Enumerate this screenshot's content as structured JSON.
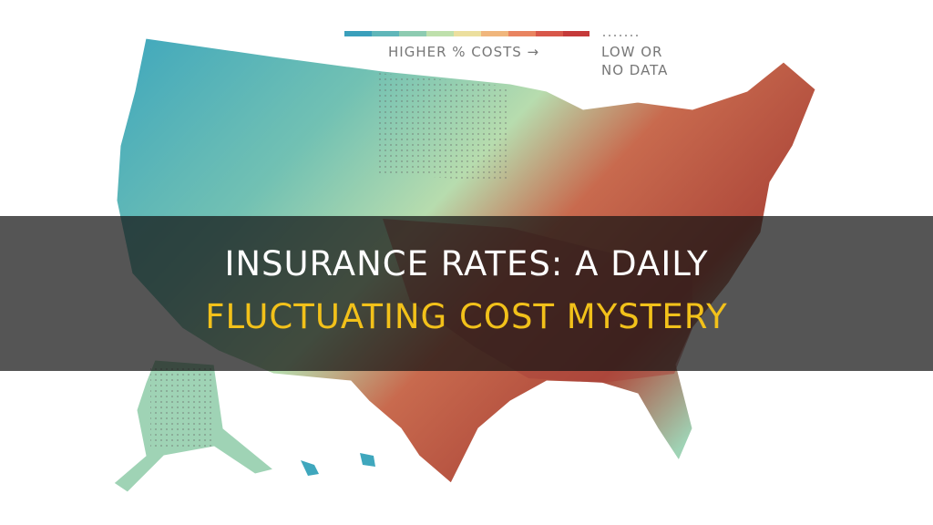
{
  "legend": {
    "scale_label": "HIGHER % COSTS →",
    "no_data_line1": "LOW OR",
    "no_data_line2": "NO DATA"
  },
  "title": {
    "line1": "INSURANCE RATES: A DAILY",
    "line2": "FLUCTUATING COST MYSTERY"
  }
}
